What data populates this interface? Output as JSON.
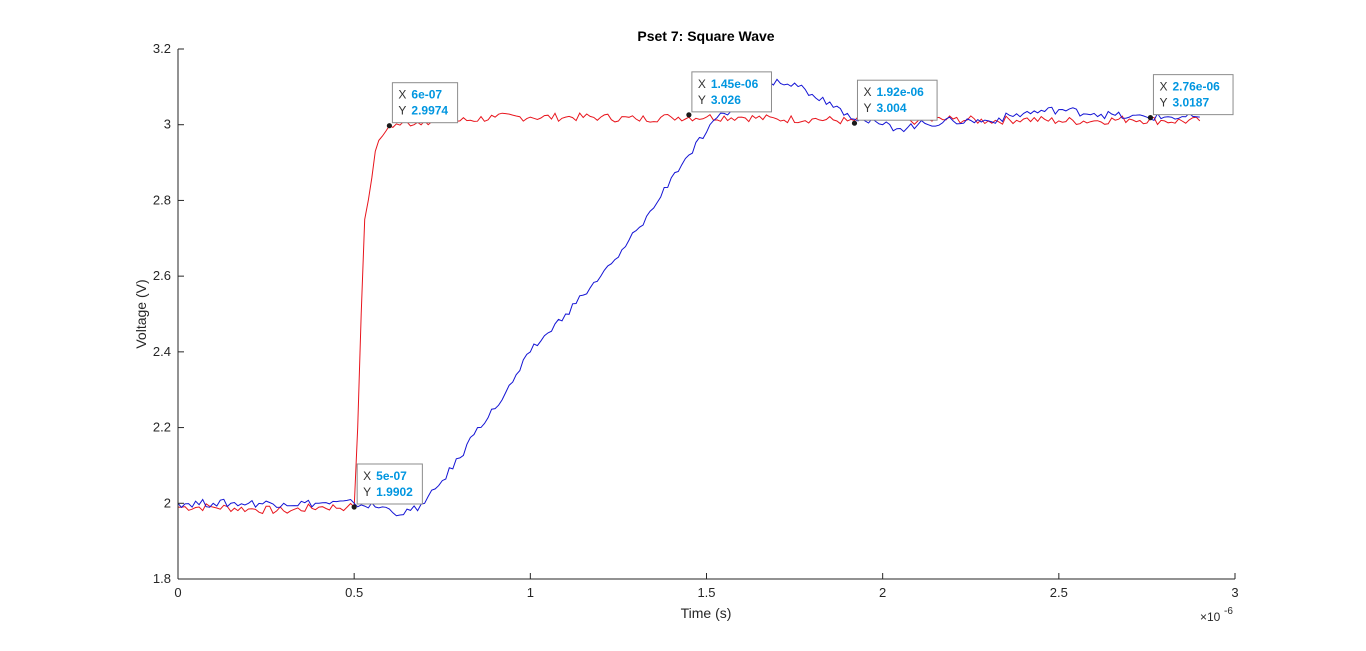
{
  "chart_data": {
    "type": "line",
    "title": "Pset 7: Square Wave",
    "xlabel": "Time (s)",
    "ylabel": "Voltage (V)",
    "x_exponent": "×10",
    "x_exponent_power": "-6",
    "xlim": [
      0,
      3
    ],
    "ylim": [
      1.8,
      3.2
    ],
    "x_ticks": [
      0,
      0.5,
      1,
      1.5,
      2,
      2.5,
      3
    ],
    "x_tick_labels": [
      "0",
      "0.5",
      "1",
      "1.5",
      "2",
      "2.5",
      "3"
    ],
    "y_ticks": [
      1.8,
      2.0,
      2.2,
      2.4,
      2.6,
      2.8,
      3.0,
      3.2
    ],
    "y_tick_labels": [
      "1.8",
      "2",
      "2.2",
      "2.4",
      "2.6",
      "2.8",
      "3",
      "3.2"
    ],
    "grid": false,
    "series": [
      {
        "color": "#e8141c",
        "points": [
          [
            0,
            1.99
          ],
          [
            0.1,
            1.99
          ],
          [
            0.2,
            1.985
          ],
          [
            0.3,
            1.98
          ],
          [
            0.4,
            1.99
          ],
          [
            0.48,
            1.99
          ],
          [
            0.5,
            1.99
          ],
          [
            0.51,
            2.2
          ],
          [
            0.52,
            2.5
          ],
          [
            0.53,
            2.75
          ],
          [
            0.54,
            2.8
          ],
          [
            0.56,
            2.93
          ],
          [
            0.58,
            2.97
          ],
          [
            0.6,
            2.9974
          ],
          [
            0.7,
            3.01
          ],
          [
            0.8,
            3.01
          ],
          [
            0.9,
            3.02
          ],
          [
            1.0,
            3.02
          ],
          [
            1.1,
            3.02
          ],
          [
            1.2,
            3.02
          ],
          [
            1.3,
            3.015
          ],
          [
            1.4,
            3.02
          ],
          [
            1.5,
            3.02
          ],
          [
            1.6,
            3.02
          ],
          [
            1.7,
            3.015
          ],
          [
            1.8,
            3.015
          ],
          [
            1.9,
            3.01
          ],
          [
            2.0,
            3.015
          ],
          [
            2.1,
            3.01
          ],
          [
            2.2,
            3.015
          ],
          [
            2.3,
            3.01
          ],
          [
            2.4,
            3.015
          ],
          [
            2.5,
            3.01
          ],
          [
            2.6,
            3.01
          ],
          [
            2.7,
            3.015
          ],
          [
            2.8,
            3.01
          ],
          [
            2.9,
            3.01
          ]
        ]
      },
      {
        "color": "#1414d4",
        "points": [
          [
            0,
            2.0
          ],
          [
            0.1,
            2.0
          ],
          [
            0.2,
            2.0
          ],
          [
            0.3,
            2.0
          ],
          [
            0.4,
            2.0
          ],
          [
            0.5,
            2.0
          ],
          [
            0.6,
            1.985
          ],
          [
            0.64,
            1.97
          ],
          [
            0.7,
            2.0
          ],
          [
            0.75,
            2.06
          ],
          [
            0.8,
            2.12
          ],
          [
            0.85,
            2.2
          ],
          [
            0.9,
            2.25
          ],
          [
            0.95,
            2.32
          ],
          [
            1.0,
            2.4
          ],
          [
            1.05,
            2.45
          ],
          [
            1.1,
            2.5
          ],
          [
            1.15,
            2.55
          ],
          [
            1.2,
            2.6
          ],
          [
            1.25,
            2.65
          ],
          [
            1.3,
            2.72
          ],
          [
            1.35,
            2.78
          ],
          [
            1.4,
            2.86
          ],
          [
            1.45,
            2.92
          ],
          [
            1.5,
            2.98
          ],
          [
            1.55,
            3.03
          ],
          [
            1.6,
            3.05
          ],
          [
            1.65,
            3.09
          ],
          [
            1.7,
            3.12
          ],
          [
            1.75,
            3.11
          ],
          [
            1.8,
            3.08
          ],
          [
            1.85,
            3.06
          ],
          [
            1.9,
            3.03
          ],
          [
            1.95,
            3.01
          ],
          [
            2.0,
            3.0
          ],
          [
            2.05,
            2.99
          ],
          [
            2.1,
            3.0
          ],
          [
            2.2,
            3.01
          ],
          [
            2.3,
            3.01
          ],
          [
            2.4,
            3.03
          ],
          [
            2.5,
            3.04
          ],
          [
            2.6,
            3.03
          ],
          [
            2.7,
            3.02
          ],
          [
            2.8,
            3.02
          ],
          [
            2.9,
            3.02
          ]
        ]
      }
    ],
    "datatips": [
      {
        "x_label": "X",
        "x_value": "5e-07",
        "y_label": "Y",
        "y_value": "1.9902",
        "x": 0.5,
        "y": 1.9902
      },
      {
        "x_label": "X",
        "x_value": "6e-07",
        "y_label": "Y",
        "y_value": "2.9974",
        "x": 0.6,
        "y": 2.9974
      },
      {
        "x_label": "X",
        "x_value": "1.45e-06",
        "y_label": "Y",
        "y_value": "3.026",
        "x": 1.45,
        "y": 3.026
      },
      {
        "x_label": "X",
        "x_value": "1.92e-06",
        "y_label": "Y",
        "y_value": "3.004",
        "x": 1.92,
        "y": 3.004
      },
      {
        "x_label": "X",
        "x_value": "2.76e-06",
        "y_label": "Y",
        "y_value": "3.0187",
        "x": 2.76,
        "y": 3.0187
      }
    ]
  }
}
